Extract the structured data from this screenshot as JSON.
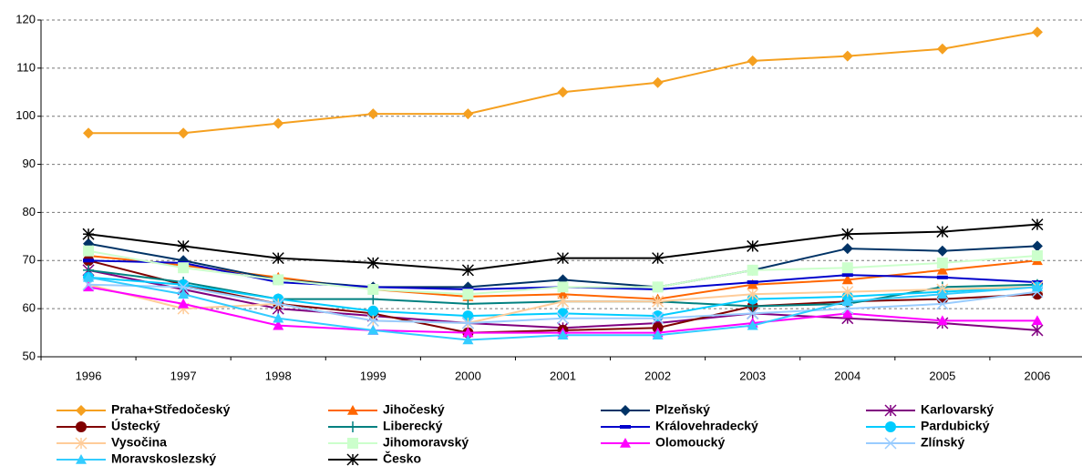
{
  "chart_data": {
    "type": "line",
    "categories": [
      "1996",
      "1997",
      "1998",
      "1999",
      "2000",
      "2001",
      "2002",
      "2003",
      "2004",
      "2005",
      "2006"
    ],
    "ylim": [
      50,
      120
    ],
    "yticks": [
      50,
      60,
      70,
      80,
      90,
      100,
      110,
      120
    ],
    "grid": true,
    "series": [
      {
        "name": "Praha+Středočeský",
        "color": "#f5a020",
        "marker": "diamond",
        "values": [
          96.5,
          96.5,
          98.5,
          100.5,
          100.5,
          105,
          107,
          111.5,
          112.5,
          114,
          117.5
        ]
      },
      {
        "name": "Jihočeský",
        "color": "#ff6600",
        "marker": "triangle",
        "values": [
          71,
          69,
          66.5,
          64,
          62.5,
          63,
          62,
          65,
          66,
          68,
          70
        ]
      },
      {
        "name": "Plzeňský",
        "color": "#003366",
        "marker": "diamond",
        "values": [
          73.5,
          70,
          66,
          64.5,
          64.5,
          66,
          64.5,
          68,
          72.5,
          72,
          73
        ]
      },
      {
        "name": "Karlovarský",
        "color": "#800080",
        "marker": "asterisk",
        "values": [
          68,
          64,
          60,
          58.5,
          57,
          56,
          57,
          59,
          58,
          57,
          55.5
        ]
      },
      {
        "name": "Ústecký",
        "color": "#800000",
        "marker": "circle",
        "values": [
          70,
          65,
          61,
          59,
          55,
          55.5,
          56,
          60.5,
          61.5,
          62,
          63
        ]
      },
      {
        "name": "Liberecký",
        "color": "#008080",
        "marker": "plus",
        "values": [
          68,
          65.5,
          62,
          62,
          61,
          61.5,
          61.5,
          60.5,
          61,
          64.5,
          65
        ]
      },
      {
        "name": "Královehradecký",
        "color": "#0000cc",
        "marker": "dash",
        "values": [
          70,
          69.5,
          65.5,
          64.5,
          64,
          64.5,
          64,
          65.5,
          67,
          66.5,
          65.5
        ]
      },
      {
        "name": "Pardubický",
        "color": "#00ccff",
        "marker": "circle",
        "values": [
          66.5,
          65,
          62,
          59.5,
          58.5,
          59,
          58.5,
          62,
          62.5,
          63.5,
          64.5
        ]
      },
      {
        "name": "Vysočina",
        "color": "#ffcc99",
        "marker": "asterisk",
        "values": [
          65,
          60,
          61,
          57.5,
          57,
          61.5,
          61.5,
          63,
          63.5,
          64,
          64.5
        ]
      },
      {
        "name": "Jihomoravský",
        "color": "#ccffcc",
        "marker": "square",
        "values": [
          72,
          68.5,
          66,
          64,
          63,
          64.5,
          64.5,
          68,
          68.5,
          69.5,
          71
        ]
      },
      {
        "name": "Olomoucký",
        "color": "#ff00ff",
        "marker": "triangle",
        "values": [
          64.5,
          61,
          56.5,
          55.5,
          55,
          55,
          55,
          57,
          59,
          57.5,
          57.5
        ]
      },
      {
        "name": "Zlínský",
        "color": "#99ccff",
        "marker": "x",
        "values": [
          65,
          64.5,
          61,
          57.5,
          57,
          58,
          58,
          59,
          60,
          61,
          63.5
        ]
      },
      {
        "name": "Moravskoslezský",
        "color": "#33ccff",
        "marker": "triangle",
        "values": [
          66.5,
          63,
          58,
          55.5,
          53.5,
          54.5,
          54.5,
          56.5,
          61.5,
          63,
          64.5
        ]
      },
      {
        "name": "Česko",
        "color": "#000000",
        "marker": "asterisk",
        "values": [
          75.5,
          73,
          70.5,
          69.5,
          68,
          70.5,
          70.5,
          73,
          75.5,
          76,
          77.5
        ]
      }
    ]
  }
}
